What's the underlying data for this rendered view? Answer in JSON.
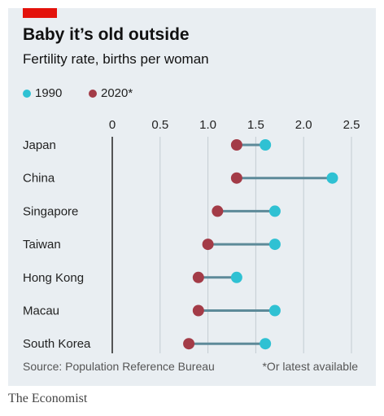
{
  "header": {
    "title": "Baby it’s old outside",
    "subtitle": "Fertility rate, births per woman"
  },
  "footer": {
    "source": "Source: Population Reference Bureau",
    "footnote": "*Or latest available",
    "brand": "The Economist"
  },
  "colors": {
    "series_1990": "#2fc1d3",
    "series_2020": "#a33b47",
    "connector": "#5d8a99",
    "accent": "#e3120b",
    "panel": "#e9eef2"
  },
  "chart_data": {
    "type": "dot-plot",
    "title": "Baby it’s old outside",
    "subtitle": "Fertility rate, births per woman",
    "xlim": [
      0,
      2.5
    ],
    "xticks": [
      "0",
      "0.5",
      "1.0",
      "1.5",
      "2.0",
      "2.5"
    ],
    "xtick_values": [
      0,
      0.5,
      1.0,
      1.5,
      2.0,
      2.5
    ],
    "categories": [
      "Japan",
      "China",
      "Singapore",
      "Taiwan",
      "Hong Kong",
      "Macau",
      "South Korea"
    ],
    "series": [
      {
        "name": "1990",
        "values": [
          1.6,
          2.3,
          1.7,
          1.7,
          1.3,
          1.7,
          1.6
        ]
      },
      {
        "name": "2020*",
        "values": [
          1.3,
          1.3,
          1.1,
          1.0,
          0.9,
          0.9,
          0.8
        ]
      }
    ],
    "legend_position": "top-left",
    "grid": true
  }
}
